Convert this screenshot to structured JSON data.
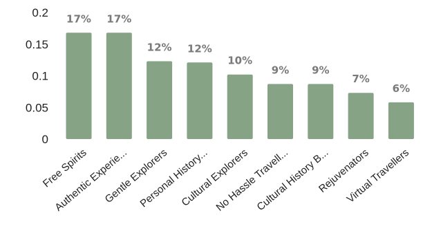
{
  "chart_data": {
    "type": "bar",
    "categories": [
      "Free Spirits",
      "Authentic Experie...",
      "Gentle Explorers",
      "Personal History...",
      "Cultural Explorers",
      "No Hassle Travell...",
      "Cultural History B...",
      "Rejuvenators",
      "Virtual Travellers"
    ],
    "values": [
      0.168,
      0.168,
      0.123,
      0.121,
      0.102,
      0.087,
      0.087,
      0.073,
      0.058
    ],
    "data_labels": [
      "17%",
      "17%",
      "12%",
      "12%",
      "10%",
      "9%",
      "9%",
      "7%",
      "6%"
    ],
    "yticks": [
      "0",
      "0.05",
      "0.1",
      "0.15",
      "0.2"
    ],
    "ylim": [
      0,
      0.2
    ],
    "title": "",
    "xlabel": "",
    "ylabel": "",
    "grid": false,
    "legend": "none",
    "bar_color": "#86a386",
    "label_color": "#7a7a7a"
  }
}
